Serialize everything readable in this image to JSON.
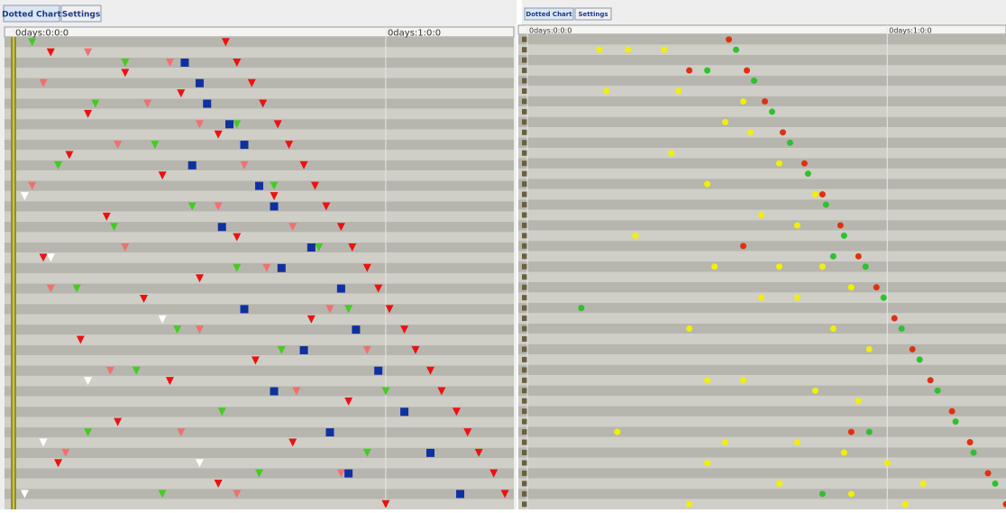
{
  "tabs": [
    [
      "Dotted Chart",
      "Settings"
    ],
    [
      "Dotted Chart",
      "Settings"
    ]
  ],
  "chart_data": [
    {
      "type": "scatter",
      "xlim": [
        0,
        1.344
      ],
      "ylim": [
        45.5,
        -0.5
      ],
      "xticks": [
        {
          "value": 0,
          "label": "0days:0:0:0"
        },
        {
          "value": 1,
          "label": "0days:1:0:0"
        }
      ],
      "series": [
        {
          "color": "#ee1111",
          "marker": "triangle",
          "x": [
            0.57,
            0.6,
            0.64,
            0.67,
            0.71,
            0.74,
            0.78,
            0.81,
            0.84,
            0.88,
            0.91,
            0.95,
            0.98,
            1.01,
            1.05,
            1.08,
            1.12,
            1.15,
            1.19,
            1.22,
            1.25,
            1.29,
            1.32,
            0.1,
            0.3,
            0.45,
            0.2,
            0.55,
            0.15,
            0.4,
            0.7,
            0.25,
            0.6,
            0.08,
            0.5,
            0.35,
            0.8,
            0.18,
            0.65,
            0.42,
            0.9,
            0.28,
            0.75,
            0.12,
            0.55,
            1.0
          ],
          "values": [
            0,
            2,
            4,
            6,
            8,
            10,
            12,
            14,
            16,
            18,
            20,
            22,
            24,
            26,
            28,
            30,
            32,
            34,
            36,
            38,
            40,
            42,
            44,
            1,
            3,
            5,
            7,
            9,
            11,
            13,
            15,
            17,
            19,
            21,
            23,
            25,
            27,
            29,
            31,
            33,
            35,
            37,
            39,
            41,
            43,
            45
          ]
        },
        {
          "color": "#44cc22",
          "marker": "triangle",
          "x": [
            0.05,
            0.3,
            0.5,
            0.22,
            0.6,
            0.38,
            0.12,
            0.7,
            0.48,
            0.27,
            0.82,
            0.6,
            0.17,
            0.9,
            0.44,
            0.72,
            0.33,
            1.0,
            0.56,
            0.2,
            0.95,
            0.66,
            0.4
          ],
          "values": [
            0,
            2,
            4,
            6,
            8,
            10,
            12,
            14,
            16,
            18,
            20,
            22,
            24,
            26,
            28,
            30,
            32,
            34,
            36,
            38,
            40,
            42,
            44
          ]
        },
        {
          "color": "#f07070",
          "marker": "triangle",
          "x": [
            0.2,
            0.42,
            0.08,
            0.36,
            0.5,
            0.28,
            0.62,
            0.05,
            0.55,
            0.75,
            0.3,
            0.68,
            0.1,
            0.85,
            0.5,
            0.95,
            0.26,
            0.76,
            1.05,
            0.45,
            0.14,
            0.88,
            0.6
          ],
          "values": [
            1,
            2,
            4,
            6,
            8,
            10,
            12,
            14,
            16,
            18,
            20,
            22,
            24,
            26,
            28,
            30,
            32,
            34,
            36,
            38,
            40,
            42,
            44
          ]
        },
        {
          "color": "#1030a0",
          "marker": "square",
          "x": [
            0.46,
            0.5,
            0.52,
            0.58,
            0.62,
            0.48,
            0.66,
            0.7,
            0.56,
            0.8,
            0.72,
            0.88,
            0.62,
            0.92,
            0.78,
            0.98,
            0.7,
            1.05,
            0.85,
            1.12,
            0.9,
            1.2
          ],
          "values": [
            2,
            4,
            6,
            8,
            10,
            12,
            14,
            16,
            18,
            20,
            22,
            24,
            26,
            28,
            30,
            32,
            34,
            36,
            38,
            40,
            42,
            44
          ]
        },
        {
          "color": "#ffffff",
          "marker": "triangle",
          "x": [
            0.03,
            0.1,
            0.4,
            0.2,
            0.08,
            0.5,
            0.03
          ],
          "values": [
            15,
            21,
            27,
            33,
            39,
            41,
            44
          ]
        }
      ]
    },
    {
      "type": "scatter",
      "xlim": [
        0,
        1.33
      ],
      "ylim": [
        45.5,
        -0.5
      ],
      "xticks": [
        {
          "value": 0,
          "label": "0days:0:0:0"
        },
        {
          "value": 1,
          "label": "0days:1:0:0"
        }
      ],
      "series": [
        {
          "color": "#f0f000",
          "marker": "circle",
          "x": [
            0.2,
            0.28,
            0.38,
            0.5,
            0.42,
            0.22,
            0.6,
            0.55,
            0.62,
            0.4,
            0.7,
            0.5,
            0.8,
            0.65,
            0.75,
            0.3,
            0.52,
            0.7,
            0.82,
            0.9,
            0.65,
            0.75,
            0.45,
            0.85,
            0.95,
            0.5,
            0.6,
            0.8,
            0.92,
            0.25,
            0.55,
            0.75,
            0.88,
            0.5,
            1.0,
            0.7,
            1.1,
            0.9,
            0.45,
            1.05
          ],
          "values": [
            1,
            1,
            1,
            3,
            5,
            5,
            6,
            8,
            9,
            11,
            12,
            14,
            15,
            17,
            18,
            19,
            22,
            22,
            22,
            24,
            25,
            25,
            28,
            28,
            30,
            33,
            33,
            34,
            35,
            38,
            39,
            39,
            40,
            41,
            41,
            43,
            43,
            44,
            45,
            45
          ]
        },
        {
          "color": "#30c030",
          "marker": "circle",
          "x": [
            0.58,
            0.63,
            0.68,
            0.73,
            0.78,
            0.83,
            0.88,
            0.94,
            0.99,
            1.04,
            1.09,
            1.14,
            1.19,
            1.24,
            1.3,
            0.15,
            0.5,
            0.85,
            0.95,
            0.82
          ],
          "values": [
            1,
            4,
            7,
            10,
            13,
            16,
            19,
            22,
            25,
            28,
            31,
            34,
            37,
            40,
            43,
            26,
            3,
            21,
            38,
            44
          ]
        },
        {
          "color": "#e03010",
          "marker": "circle",
          "x": [
            0.56,
            0.61,
            0.66,
            0.71,
            0.77,
            0.82,
            0.87,
            0.92,
            0.97,
            1.02,
            1.07,
            1.12,
            1.18,
            1.23,
            1.28,
            1.33,
            0.45,
            0.6,
            0.9
          ],
          "values": [
            0,
            3,
            6,
            9,
            12,
            15,
            18,
            21,
            24,
            27,
            30,
            33,
            36,
            39,
            42,
            45,
            3,
            20,
            38
          ]
        }
      ]
    }
  ]
}
